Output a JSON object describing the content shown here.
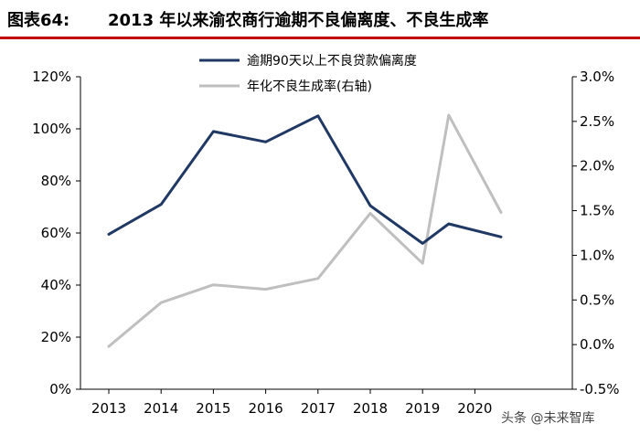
{
  "header": {
    "label": "图表64:",
    "title": "2013 年以来渝农商行逾期不良偏离度、不良生成率"
  },
  "watermark": "头条 @未来智库",
  "colors": {
    "series_left": "#1f3864",
    "series_right": "#bfbfbf",
    "header_rule": "#c00000"
  },
  "chart_data": {
    "type": "line",
    "categories": [
      "2013",
      "2014",
      "2015",
      "2016",
      "2017",
      "2018",
      "2019",
      "2020"
    ],
    "x_tick_labels": [
      "2013",
      "2014",
      "2015",
      "2016",
      "2017",
      "2018",
      "2019",
      "2020"
    ],
    "ylim_left": [
      0,
      120
    ],
    "ylim_right": [
      -0.5,
      3.0
    ],
    "y_left_ticks": [
      "0%",
      "20%",
      "40%",
      "60%",
      "80%",
      "100%",
      "120%"
    ],
    "y_right_ticks": [
      "-0.5%",
      "0.0%",
      "0.5%",
      "1.0%",
      "1.5%",
      "2.0%",
      "2.5%",
      "3.0%"
    ],
    "grid": false,
    "legend_position": "top-center",
    "series": [
      {
        "name": "逾期90天以上不良贷款偏离度",
        "axis": "left",
        "x": [
          2013.0,
          2014.0,
          2015.0,
          2016.0,
          2017.0,
          2018.0,
          2019.0,
          2019.5,
          2020.5
        ],
        "values": [
          59.5,
          71,
          99,
          95,
          105,
          70.5,
          56,
          63.5,
          58.5
        ]
      },
      {
        "name": "年化不良生成率(右轴)",
        "axis": "right",
        "x": [
          2013.0,
          2014.0,
          2015.0,
          2016.0,
          2017.0,
          2018.0,
          2019.0,
          2019.5,
          2020.5
        ],
        "values": [
          -0.02,
          0.47,
          0.67,
          0.62,
          0.74,
          1.47,
          0.91,
          2.57,
          1.48
        ]
      }
    ]
  }
}
